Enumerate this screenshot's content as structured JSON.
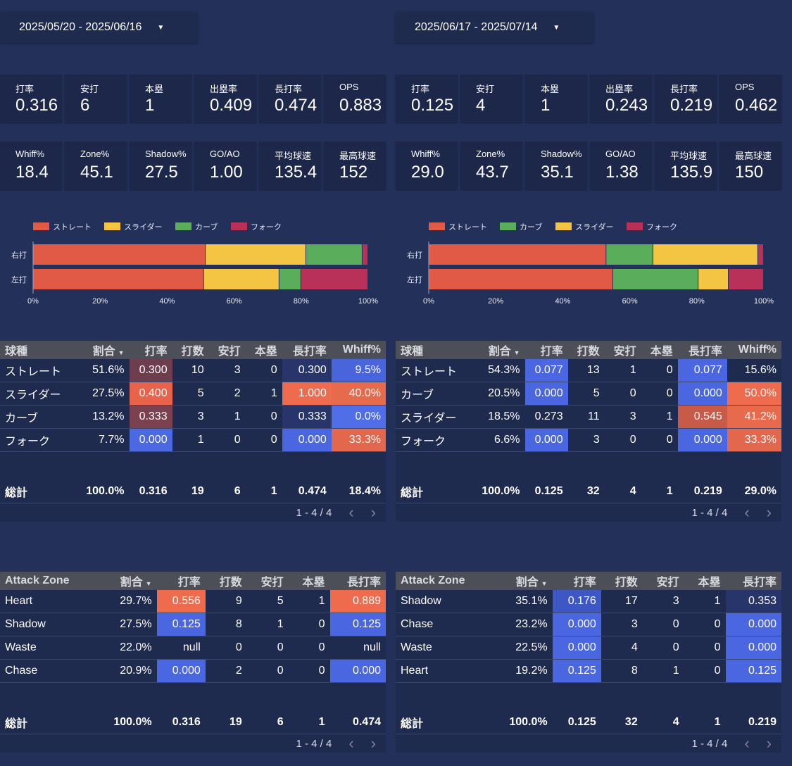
{
  "left": {
    "date_range": "2025/05/20 - 2025/06/16",
    "kpis_row1": [
      {
        "label": "打率",
        "value": "0.316"
      },
      {
        "label": "安打",
        "value": "6"
      },
      {
        "label": "本塁",
        "value": "1"
      },
      {
        "label": "出塁率",
        "value": "0.409"
      },
      {
        "label": "長打率",
        "value": "0.474"
      },
      {
        "label": "OPS",
        "value": "0.883"
      }
    ],
    "kpis_row2": [
      {
        "label": "Whiff%",
        "value": "18.4"
      },
      {
        "label": "Zone%",
        "value": "45.1"
      },
      {
        "label": "Shadow%",
        "value": "27.5"
      },
      {
        "label": "GO/AO",
        "value": "1.00"
      },
      {
        "label": "平均球速",
        "value": "135.4"
      },
      {
        "label": "最高球速",
        "value": "152"
      }
    ],
    "chart_data": {
      "type": "bar",
      "orientation": "horizontal-stacked-100",
      "categories": [
        "右打",
        "左打"
      ],
      "series": [
        {
          "name": "ストレート",
          "color": "#e05a46",
          "values": [
            51.5,
            51.0
          ]
        },
        {
          "name": "スライダー",
          "color": "#f4c542",
          "values": [
            30.0,
            22.5
          ]
        },
        {
          "name": "カーブ",
          "color": "#5aad5b",
          "values": [
            16.8,
            6.5
          ]
        },
        {
          "name": "フォーク",
          "color": "#b93159",
          "values": [
            1.7,
            20.0
          ]
        }
      ],
      "x_ticks": [
        "0%",
        "20%",
        "40%",
        "60%",
        "80%",
        "100%"
      ],
      "xlim": [
        0,
        100
      ],
      "legend_position": "top-left"
    },
    "pitch_table": {
      "headers": [
        "球種",
        "割合",
        "打率",
        "打数",
        "安打",
        "本塁",
        "長打率",
        "Whiff%"
      ],
      "sort_column": "割合",
      "rows": [
        {
          "name": "ストレート",
          "pct": "51.6%",
          "avg": "0.300",
          "ab": "10",
          "h": "3",
          "hr": "0",
          "slg": "0.300",
          "whiff": "9.5%"
        },
        {
          "name": "スライダー",
          "pct": "27.5%",
          "avg": "0.400",
          "ab": "5",
          "h": "2",
          "hr": "1",
          "slg": "1.000",
          "whiff": "40.0%"
        },
        {
          "name": "カーブ",
          "pct": "13.2%",
          "avg": "0.333",
          "ab": "3",
          "h": "1",
          "hr": "0",
          "slg": "0.333",
          "whiff": "0.0%"
        },
        {
          "name": "フォーク",
          "pct": "7.7%",
          "avg": "0.000",
          "ab": "1",
          "h": "0",
          "hr": "0",
          "slg": "0.000",
          "whiff": "33.3%"
        }
      ],
      "cell_colors": [
        {
          "avg": "#6e3d4e",
          "slg": "#27356a",
          "whiff": "#4865dc"
        },
        {
          "avg": "#e9634b",
          "slg": "#ef6b4e",
          "whiff": "#e86a4c"
        },
        {
          "avg": "#7b4150",
          "slg": "#27356a",
          "whiff": "#4f6ee8"
        },
        {
          "avg": "#4c69e2",
          "slg": "#4a66e0",
          "whiff": "#e2674c"
        }
      ],
      "total": {
        "label": "総計",
        "pct": "100.0%",
        "avg": "0.316",
        "ab": "19",
        "h": "6",
        "hr": "1",
        "slg": "0.474",
        "whiff": "18.4%"
      },
      "pager": "1 - 4 / 4"
    },
    "zone_table": {
      "headers": [
        "Attack Zone",
        "割合",
        "打率",
        "打数",
        "安打",
        "本塁",
        "長打率"
      ],
      "sort_column": "割合",
      "rows": [
        {
          "name": "Heart",
          "pct": "29.7%",
          "avg": "0.556",
          "ab": "9",
          "h": "5",
          "hr": "1",
          "slg": "0.889"
        },
        {
          "name": "Shadow",
          "pct": "27.5%",
          "avg": "0.125",
          "ab": "8",
          "h": "1",
          "hr": "0",
          "slg": "0.125"
        },
        {
          "name": "Waste",
          "pct": "22.0%",
          "avg": "null",
          "ab": "0",
          "h": "0",
          "hr": "0",
          "slg": "null"
        },
        {
          "name": "Chase",
          "pct": "20.9%",
          "avg": "0.000",
          "ab": "2",
          "h": "0",
          "hr": "0",
          "slg": "0.000"
        }
      ],
      "cell_colors": [
        {
          "avg": "#ef6b4e",
          "slg": "#ef6b4e"
        },
        {
          "avg": "#4a66e0",
          "slg": "#4a66e0"
        },
        {
          "avg": "",
          "slg": ""
        },
        {
          "avg": "#4a66e0",
          "slg": "#4a66e0"
        }
      ],
      "total": {
        "label": "総計",
        "pct": "100.0%",
        "avg": "0.316",
        "ab": "19",
        "h": "6",
        "hr": "1",
        "slg": "0.474"
      },
      "pager": "1 - 4 / 4"
    }
  },
  "right": {
    "date_range": "2025/06/17 - 2025/07/14",
    "kpis_row1": [
      {
        "label": "打率",
        "value": "0.125"
      },
      {
        "label": "安打",
        "value": "4"
      },
      {
        "label": "本塁",
        "value": "1"
      },
      {
        "label": "出塁率",
        "value": "0.243"
      },
      {
        "label": "長打率",
        "value": "0.219"
      },
      {
        "label": "OPS",
        "value": "0.462"
      }
    ],
    "kpis_row2": [
      {
        "label": "Whiff%",
        "value": "29.0"
      },
      {
        "label": "Zone%",
        "value": "43.7"
      },
      {
        "label": "Shadow%",
        "value": "35.1"
      },
      {
        "label": "GO/AO",
        "value": "1.38"
      },
      {
        "label": "平均球速",
        "value": "135.9"
      },
      {
        "label": "最高球速",
        "value": "150"
      }
    ],
    "chart_data": {
      "type": "bar",
      "orientation": "horizontal-stacked-100",
      "categories": [
        "右打",
        "左打"
      ],
      "series": [
        {
          "name": "ストレート",
          "color": "#e05a46",
          "values": [
            53.0,
            55.0
          ]
        },
        {
          "name": "カーブ",
          "color": "#5aad5b",
          "values": [
            14.0,
            25.5
          ]
        },
        {
          "name": "スライダー",
          "color": "#f4c542",
          "values": [
            31.3,
            9.0
          ]
        },
        {
          "name": "フォーク",
          "color": "#b93159",
          "values": [
            1.7,
            10.5
          ]
        }
      ],
      "x_ticks": [
        "0%",
        "20%",
        "40%",
        "60%",
        "80%",
        "100%"
      ],
      "xlim": [
        0,
        100
      ],
      "legend_position": "top-left"
    },
    "pitch_table": {
      "headers": [
        "球種",
        "割合",
        "打率",
        "打数",
        "安打",
        "本塁",
        "長打率",
        "Whiff%"
      ],
      "sort_column": "割合",
      "rows": [
        {
          "name": "ストレート",
          "pct": "54.3%",
          "avg": "0.077",
          "ab": "13",
          "h": "1",
          "hr": "0",
          "slg": "0.077",
          "whiff": "15.6%"
        },
        {
          "name": "カーブ",
          "pct": "20.5%",
          "avg": "0.000",
          "ab": "5",
          "h": "0",
          "hr": "0",
          "slg": "0.000",
          "whiff": "50.0%"
        },
        {
          "name": "スライダー",
          "pct": "18.5%",
          "avg": "0.273",
          "ab": "11",
          "h": "3",
          "hr": "1",
          "slg": "0.545",
          "whiff": "41.2%"
        },
        {
          "name": "フォーク",
          "pct": "6.6%",
          "avg": "0.000",
          "ab": "3",
          "h": "0",
          "hr": "0",
          "slg": "0.000",
          "whiff": "33.3%"
        }
      ],
      "cell_colors": [
        {
          "avg": "#4a66e0",
          "slg": "#4a66e0",
          "whiff": ""
        },
        {
          "avg": "#4a66e0",
          "slg": "#4a66e0",
          "whiff": "#ef6b4e"
        },
        {
          "avg": "",
          "slg": "#c85a48",
          "whiff": "#e86a4c"
        },
        {
          "avg": "#4a66e0",
          "slg": "#4a66e0",
          "whiff": "#e2674c"
        }
      ],
      "total": {
        "label": "総計",
        "pct": "100.0%",
        "avg": "0.125",
        "ab": "32",
        "h": "4",
        "hr": "1",
        "slg": "0.219",
        "whiff": "29.0%"
      },
      "pager": "1 - 4 / 4"
    },
    "zone_table": {
      "headers": [
        "Attack Zone",
        "割合",
        "打率",
        "打数",
        "安打",
        "本塁",
        "長打率"
      ],
      "sort_column": "割合",
      "rows": [
        {
          "name": "Shadow",
          "pct": "35.1%",
          "avg": "0.176",
          "ab": "17",
          "h": "3",
          "hr": "1",
          "slg": "0.353"
        },
        {
          "name": "Chase",
          "pct": "23.2%",
          "avg": "0.000",
          "ab": "3",
          "h": "0",
          "hr": "0",
          "slg": "0.000"
        },
        {
          "name": "Waste",
          "pct": "22.5%",
          "avg": "0.000",
          "ab": "4",
          "h": "0",
          "hr": "0",
          "slg": "0.000"
        },
        {
          "name": "Heart",
          "pct": "19.2%",
          "avg": "0.125",
          "ab": "8",
          "h": "1",
          "hr": "0",
          "slg": "0.125"
        }
      ],
      "cell_colors": [
        {
          "avg": "#3d57c4",
          "slg": "#27356a"
        },
        {
          "avg": "#4a66e0",
          "slg": "#4a66e0"
        },
        {
          "avg": "#4a66e0",
          "slg": "#4a66e0"
        },
        {
          "avg": "#4a66e0",
          "slg": "#4a66e0"
        }
      ],
      "total": {
        "label": "総計",
        "pct": "100.0%",
        "avg": "0.125",
        "ab": "32",
        "h": "4",
        "hr": "1",
        "slg": "0.219"
      },
      "pager": "1 - 4 / 4"
    }
  },
  "icons": {
    "dropdown": "caret-down-icon",
    "sort": "sort-down-icon",
    "prev": "chevron-left-icon",
    "next": "chevron-right-icon"
  }
}
